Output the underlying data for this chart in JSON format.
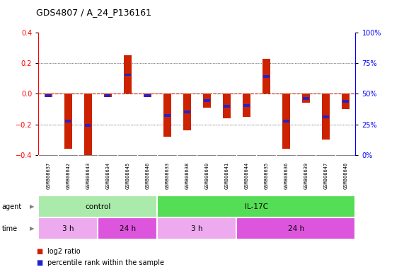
{
  "title": "GDS4807 / A_24_P136161",
  "samples": [
    "GSM808637",
    "GSM808642",
    "GSM808643",
    "GSM808634",
    "GSM808645",
    "GSM808646",
    "GSM808633",
    "GSM808638",
    "GSM808640",
    "GSM808641",
    "GSM808644",
    "GSM808635",
    "GSM808636",
    "GSM808639",
    "GSM808647",
    "GSM808648"
  ],
  "log2_ratio": [
    -0.02,
    -0.36,
    -0.41,
    -0.02,
    0.25,
    -0.02,
    -0.28,
    -0.24,
    -0.09,
    -0.16,
    -0.15,
    0.23,
    -0.36,
    -0.06,
    -0.3,
    -0.1
  ],
  "percentile_rank": [
    47,
    31,
    31,
    47,
    55,
    47,
    36,
    37,
    46,
    42,
    42,
    55,
    35,
    47,
    34,
    46
  ],
  "ylim_left": [
    -0.4,
    0.4
  ],
  "ylim_right": [
    0,
    100
  ],
  "yticks_left": [
    -0.4,
    -0.2,
    0.0,
    0.2,
    0.4
  ],
  "yticks_right": [
    0,
    25,
    50,
    75,
    100
  ],
  "ytick_labels_right": [
    "0%",
    "25%",
    "50%",
    "75%",
    "100%"
  ],
  "agent_groups": [
    {
      "label": "control",
      "start": 0,
      "end": 6,
      "color": "#aaeaaa"
    },
    {
      "label": "IL-17C",
      "start": 6,
      "end": 16,
      "color": "#55dd55"
    }
  ],
  "time_groups": [
    {
      "label": "3 h",
      "start": 0,
      "end": 3,
      "color": "#eeaaee"
    },
    {
      "label": "24 h",
      "start": 3,
      "end": 6,
      "color": "#dd55dd"
    },
    {
      "label": "3 h",
      "start": 6,
      "end": 10,
      "color": "#eeaaee"
    },
    {
      "label": "24 h",
      "start": 10,
      "end": 16,
      "color": "#dd55dd"
    }
  ],
  "bar_color": "#cc2200",
  "dot_color": "#2222cc",
  "zero_line_color": "#cc2200",
  "bg_plot": "#ffffff",
  "bg_sample": "#cccccc",
  "legend_items": [
    {
      "label": "log2 ratio",
      "color": "#cc2200"
    },
    {
      "label": "percentile rank within the sample",
      "color": "#2222cc"
    }
  ]
}
